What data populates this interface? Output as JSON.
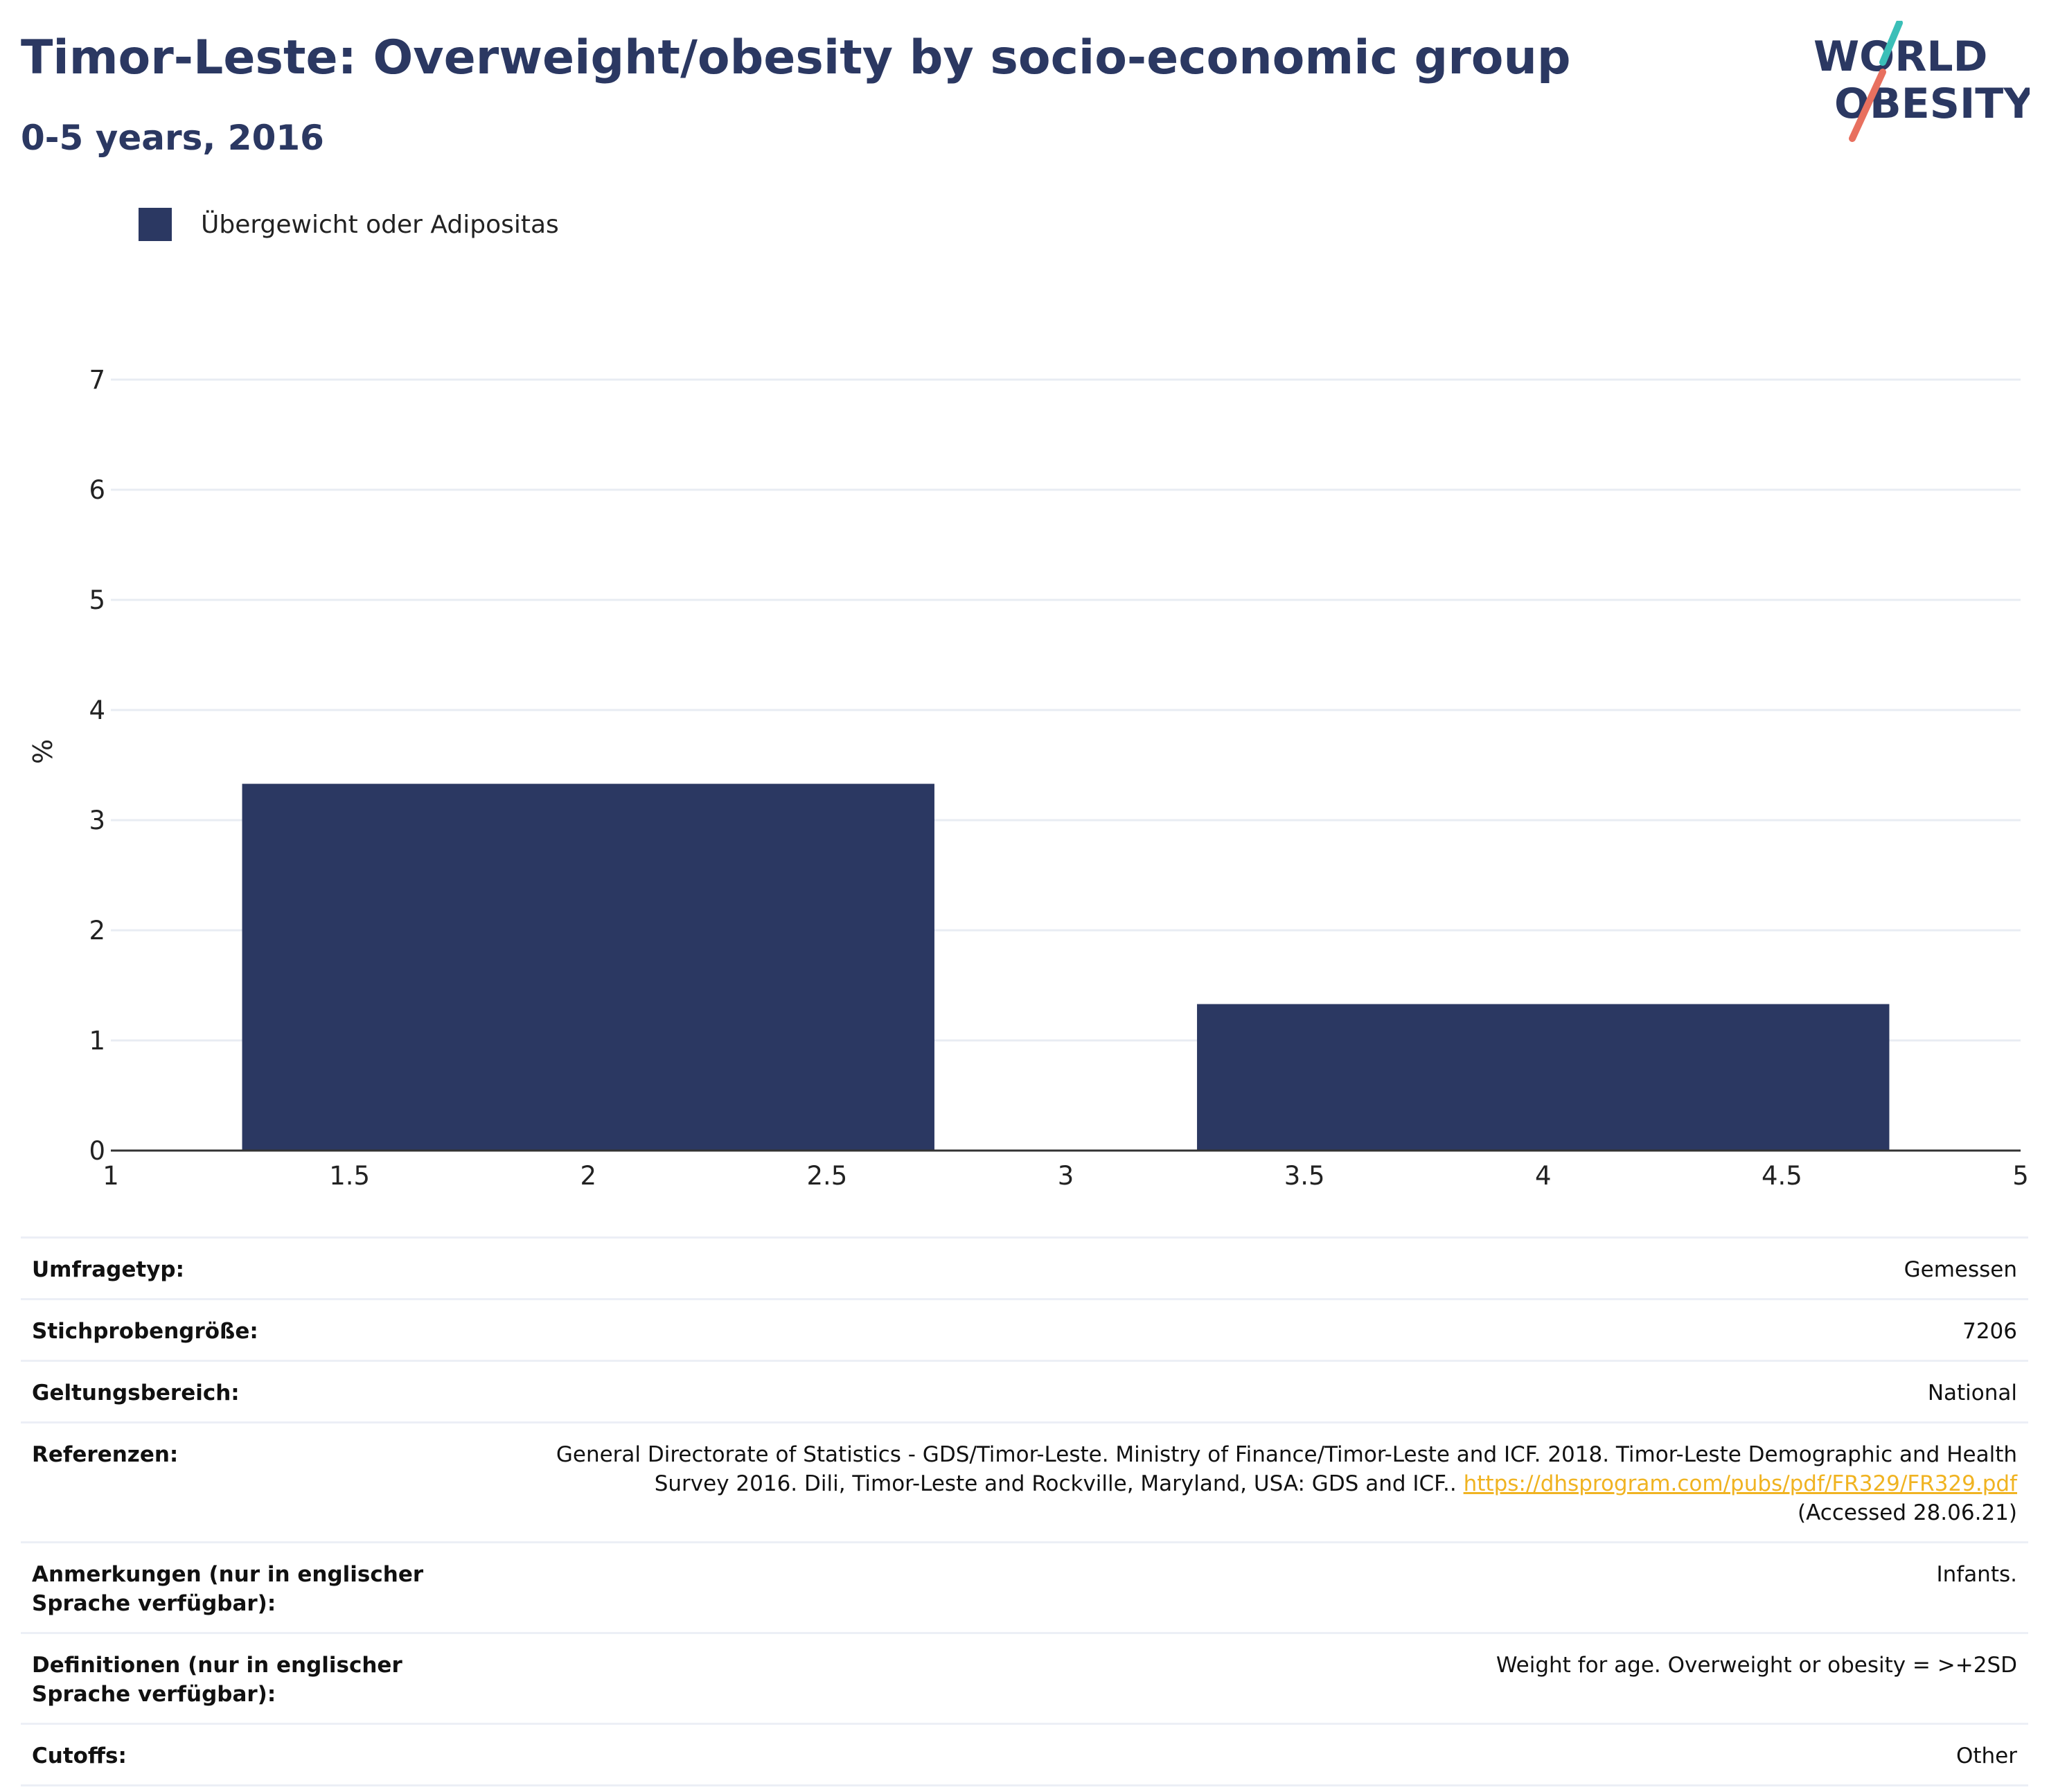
{
  "header": {
    "title": "Timor-Leste: Overweight/obesity by socio-economic group",
    "subtitle": "0-5 years, 2016"
  },
  "logo": {
    "line1": "WORLD",
    "line2": "OBESITY",
    "colors": {
      "text": "#2b3862",
      "teal": "#3bbfb8",
      "coral": "#e8705f"
    }
  },
  "colors": {
    "bar": "#2b3862",
    "grid": "#e8ecf3",
    "axis": "#333333",
    "link": "#f0b321"
  },
  "chart_data": {
    "type": "bar",
    "title": "Timor-Leste: Overweight/obesity by socio-economic group",
    "ylabel": "%",
    "xlabel": "",
    "xlim": [
      1,
      5
    ],
    "ylim": [
      0,
      7
    ],
    "x_ticks": [
      "1",
      "1.5",
      "2",
      "2.5",
      "3",
      "3.5",
      "4",
      "4.5",
      "5"
    ],
    "y_ticks": [
      "0",
      "1",
      "2",
      "3",
      "4",
      "5",
      "6",
      "7"
    ],
    "grid": true,
    "legend_position": "top-left",
    "series": [
      {
        "name": "Übergewicht oder Adipositas",
        "color": "#2b3862",
        "x": [
          2,
          4
        ],
        "values": [
          3.33,
          1.33
        ]
      }
    ]
  },
  "meta": [
    {
      "label": "Umfragetyp:",
      "value": "Gemessen"
    },
    {
      "label": "Stichprobengröße:",
      "value": "7206"
    },
    {
      "label": "Geltungsbereich:",
      "value": "National"
    },
    {
      "label": "Referenzen:",
      "value": "General Directorate of Statistics - GDS/Timor-Leste. Ministry of Finance/Timor-Leste and ICF. 2018. Timor-Leste Demographic and Health Survey 2016. Dili, Timor-Leste and Rockville, Maryland, USA: GDS and ICF..",
      "link": "https://dhsprogram.com/pubs/pdf/FR329/FR329.pdf",
      "suffix": "(Accessed 28.06.21)"
    },
    {
      "label": "Anmerkungen (nur in englischer Sprache verfügbar):",
      "value": "Infants."
    },
    {
      "label": "Definitionen (nur in englischer Sprache verfügbar):",
      "value": "Weight for age. Overweight or obesity = >+2SD"
    },
    {
      "label": "Cutoffs:",
      "value": "Other"
    }
  ]
}
